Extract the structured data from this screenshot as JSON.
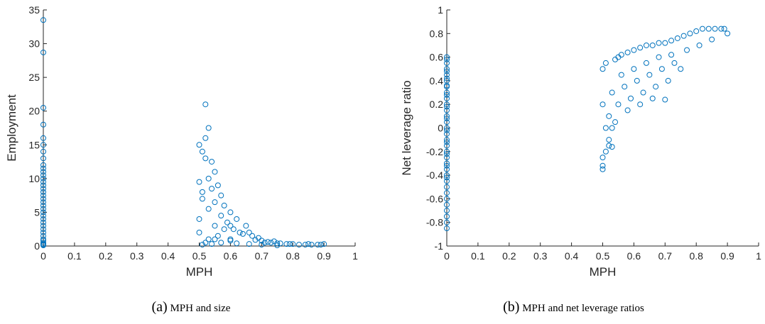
{
  "chart_data": [
    {
      "type": "scatter",
      "title": "",
      "xlabel": "MPH",
      "ylabel": "Employment",
      "xlim": [
        0,
        1
      ],
      "ylim": [
        0,
        35
      ],
      "xticks": [
        "0",
        "0.1",
        "0.2",
        "0.3",
        "0.4",
        "0.5",
        "0.6",
        "0.7",
        "0.8",
        "0.9",
        "1"
      ],
      "yticks": [
        "0",
        "5",
        "10",
        "15",
        "20",
        "25",
        "30",
        "35"
      ],
      "marker": "open-circle",
      "color": "#0072BD",
      "grid": false,
      "caption_tag": "(a)",
      "caption_text": "MPH and size",
      "series": [
        {
          "x": [
            0,
            0,
            0,
            0,
            0,
            0,
            0,
            0,
            0,
            0,
            0,
            0,
            0,
            0,
            0,
            0,
            0,
            0,
            0,
            0,
            0,
            0,
            0,
            0,
            0,
            0,
            0,
            0,
            0,
            0,
            0,
            0,
            0,
            0,
            0,
            0,
            0.52,
            0.53,
            0.5,
            0.51,
            0.52,
            0.54,
            0.55,
            0.53,
            0.5,
            0.51,
            0.56,
            0.57,
            0.55,
            0.52,
            0.58,
            0.5,
            0.53,
            0.6,
            0.54,
            0.51,
            0.5,
            0.55,
            0.57,
            0.59,
            0.62,
            0.58,
            0.6,
            0.63,
            0.56,
            0.53,
            0.65,
            0.61,
            0.64,
            0.67,
            0.66,
            0.6,
            0.69,
            0.7,
            0.68,
            0.72,
            0.74,
            0.71,
            0.76,
            0.73,
            0.78,
            0.75,
            0.8,
            0.82,
            0.79,
            0.84,
            0.86,
            0.85,
            0.88,
            0.9,
            0.89,
            0.52,
            0.54,
            0.57,
            0.51,
            0.62,
            0.66,
            0.7,
            0.75,
            0.55,
            0.6
          ],
          "y": [
            33.5,
            28.7,
            20.5,
            18,
            16,
            15,
            14,
            13,
            12,
            11.5,
            11,
            10.5,
            10,
            9.5,
            9,
            8.5,
            8,
            7.5,
            7,
            6.5,
            6,
            5.5,
            5,
            4.5,
            4,
            3.5,
            3,
            2.5,
            2,
            1.5,
            1,
            0.8,
            0.5,
            0.3,
            0.2,
            0.1,
            21,
            17.5,
            15,
            14,
            16,
            12.5,
            11,
            10,
            9.5,
            8,
            9,
            7.5,
            6.5,
            13,
            6,
            4,
            5.5,
            5,
            8.5,
            7,
            2,
            3,
            4.5,
            3.5,
            4,
            2.5,
            3,
            2,
            1.5,
            1,
            3,
            2.5,
            1.8,
            1.5,
            2,
            1,
            1.2,
            0.8,
            0.9,
            0.6,
            0.7,
            0.5,
            0.4,
            0.5,
            0.3,
            0.4,
            0.3,
            0.2,
            0.3,
            0.2,
            0.2,
            0.3,
            0.2,
            0.3,
            0.2,
            0.5,
            0.3,
            0.5,
            0.2,
            0.4,
            0.3,
            0.2,
            0.1,
            1,
            0.8
          ]
        }
      ]
    },
    {
      "type": "scatter",
      "title": "",
      "xlabel": "MPH",
      "ylabel": "Net leverage ratio",
      "xlim": [
        0,
        1
      ],
      "ylim": [
        -1,
        1
      ],
      "xticks": [
        "0",
        "0.1",
        "0.2",
        "0.3",
        "0.4",
        "0.5",
        "0.6",
        "0.7",
        "0.8",
        "0.9",
        "1"
      ],
      "yticks": [
        "-1",
        "-0.8",
        "-0.6",
        "-0.4",
        "-0.2",
        "0",
        "0.2",
        "0.4",
        "0.6",
        "0.8",
        "1"
      ],
      "marker": "open-circle",
      "color": "#0072BD",
      "grid": false,
      "caption_tag": "(b)",
      "caption_text": "MPH and net leverage ratios",
      "series": [
        {
          "x": [
            0,
            0,
            0,
            0,
            0,
            0,
            0,
            0,
            0,
            0,
            0,
            0,
            0,
            0,
            0,
            0,
            0,
            0,
            0,
            0,
            0,
            0,
            0,
            0,
            0,
            0,
            0,
            0,
            0,
            0,
            0,
            0,
            0,
            0,
            0,
            0,
            0,
            0,
            0,
            0,
            0,
            0,
            0.5,
            0.5,
            0.5,
            0.51,
            0.52,
            0.52,
            0.53,
            0.5,
            0.51,
            0.55,
            0.54,
            0.56,
            0.58,
            0.6,
            0.62,
            0.64,
            0.66,
            0.68,
            0.7,
            0.72,
            0.74,
            0.76,
            0.78,
            0.8,
            0.82,
            0.84,
            0.86,
            0.88,
            0.89,
            0.53,
            0.57,
            0.61,
            0.65,
            0.69,
            0.73,
            0.52,
            0.55,
            0.59,
            0.63,
            0.67,
            0.71,
            0.75,
            0.51,
            0.54,
            0.58,
            0.62,
            0.66,
            0.7,
            0.5,
            0.53,
            0.56,
            0.6,
            0.64,
            0.68,
            0.72,
            0.77,
            0.81,
            0.85,
            0.9
          ],
          "y": [
            0.6,
            0.58,
            0.55,
            0.5,
            0.45,
            0.4,
            0.35,
            0.3,
            0.25,
            0.2,
            0.15,
            0.1,
            0.05,
            0,
            -0.05,
            -0.1,
            -0.15,
            -0.2,
            -0.25,
            -0.3,
            -0.35,
            -0.4,
            -0.45,
            -0.5,
            -0.55,
            -0.6,
            -0.65,
            -0.7,
            -0.75,
            -0.8,
            -0.85,
            0.48,
            0.42,
            0.36,
            0.28,
            0.18,
            0.08,
            -0.02,
            -0.12,
            -0.22,
            -0.32,
            -0.42,
            -0.35,
            -0.32,
            -0.25,
            -0.2,
            -0.15,
            -0.1,
            -0.16,
            0.5,
            0.55,
            0.6,
            0.58,
            0.62,
            0.64,
            0.66,
            0.68,
            0.7,
            0.7,
            0.72,
            0.72,
            0.74,
            0.76,
            0.78,
            0.8,
            0.82,
            0.84,
            0.84,
            0.84,
            0.84,
            0.84,
            0.3,
            0.35,
            0.4,
            0.45,
            0.5,
            0.55,
            0.1,
            0.2,
            0.25,
            0.3,
            0.35,
            0.4,
            0.5,
            0,
            0.05,
            0.15,
            0.2,
            0.25,
            0.24,
            0.2,
            0.0,
            0.45,
            0.5,
            0.55,
            0.6,
            0.62,
            0.66,
            0.7,
            0.75,
            0.8
          ]
        }
      ]
    }
  ]
}
